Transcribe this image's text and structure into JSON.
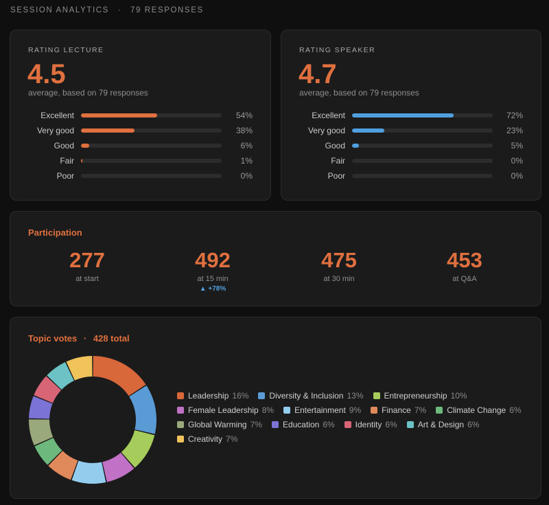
{
  "header": {
    "title": "SESSION ANALYTICS",
    "separator": "·",
    "responses": "79 RESPONSES"
  },
  "colors": {
    "accent": "#e0703f",
    "speaker_bar": "#4f9fe0",
    "background": "#0f0f0f",
    "card": "#1b1b1b"
  },
  "lecture": {
    "label": "RATING LECTURE",
    "score": "4.5",
    "sub": "average, based on 79 responses",
    "rows": [
      {
        "label": "Excellent",
        "pct": "54%",
        "value": 54
      },
      {
        "label": "Very good",
        "pct": "38%",
        "value": 38
      },
      {
        "label": "Good",
        "pct": "6%",
        "value": 6
      },
      {
        "label": "Fair",
        "pct": "1%",
        "value": 1
      },
      {
        "label": "Poor",
        "pct": "0%",
        "value": 0
      }
    ]
  },
  "speaker": {
    "label": "RATING SPEAKER",
    "score": "4.7",
    "sub": "average, based on 79 responses",
    "rows": [
      {
        "label": "Excellent",
        "pct": "72%",
        "value": 72
      },
      {
        "label": "Very good",
        "pct": "23%",
        "value": 23
      },
      {
        "label": "Good",
        "pct": "5%",
        "value": 5
      },
      {
        "label": "Fair",
        "pct": "0%",
        "value": 0
      },
      {
        "label": "Poor",
        "pct": "0%",
        "value": 0
      }
    ]
  },
  "participation": {
    "title": "Participation",
    "stats": [
      {
        "value": "277",
        "label": "at start",
        "delta": ""
      },
      {
        "value": "492",
        "label": "at 15 min",
        "delta": "▲ +78%"
      },
      {
        "value": "475",
        "label": "at 30 min",
        "delta": ""
      },
      {
        "value": "453",
        "label": "at Q&A",
        "delta": ""
      }
    ]
  },
  "topics": {
    "title": "Topic votes",
    "separator": "·",
    "total": "428 total",
    "items": [
      {
        "name": "Leadership",
        "pct": "16%",
        "value": 16,
        "color": "#d8673a"
      },
      {
        "name": "Diversity & Inclusion",
        "pct": "13%",
        "value": 13,
        "color": "#5b9bd5"
      },
      {
        "name": "Entrepreneurship",
        "pct": "10%",
        "value": 10,
        "color": "#a6cc5c"
      },
      {
        "name": "Female Leadership",
        "pct": "8%",
        "value": 8,
        "color": "#c171c6"
      },
      {
        "name": "Entertainment",
        "pct": "9%",
        "value": 9,
        "color": "#93cdee"
      },
      {
        "name": "Finance",
        "pct": "7%",
        "value": 7,
        "color": "#e0895a"
      },
      {
        "name": "Climate Change",
        "pct": "6%",
        "value": 6,
        "color": "#6db87c"
      },
      {
        "name": "Global Warming",
        "pct": "7%",
        "value": 7,
        "color": "#9aa97c"
      },
      {
        "name": "Education",
        "pct": "6%",
        "value": 6,
        "color": "#7b74d6"
      },
      {
        "name": "Identity",
        "pct": "6%",
        "value": 6,
        "color": "#d86576"
      },
      {
        "name": "Art & Design",
        "pct": "6%",
        "value": 6,
        "color": "#6cc2c4"
      },
      {
        "name": "Creativity",
        "pct": "7%",
        "value": 7,
        "color": "#f0c35b"
      }
    ]
  },
  "chart_data": {
    "type": "pie",
    "title": "Topic votes",
    "categories": [
      "Leadership",
      "Diversity & Inclusion",
      "Entrepreneurship",
      "Female Leadership",
      "Entertainment",
      "Finance",
      "Climate Change",
      "Global Warming",
      "Education",
      "Identity",
      "Art & Design",
      "Creativity"
    ],
    "values": [
      16,
      13,
      10,
      8,
      9,
      7,
      6,
      7,
      6,
      6,
      6,
      7
    ],
    "legend": "right"
  }
}
